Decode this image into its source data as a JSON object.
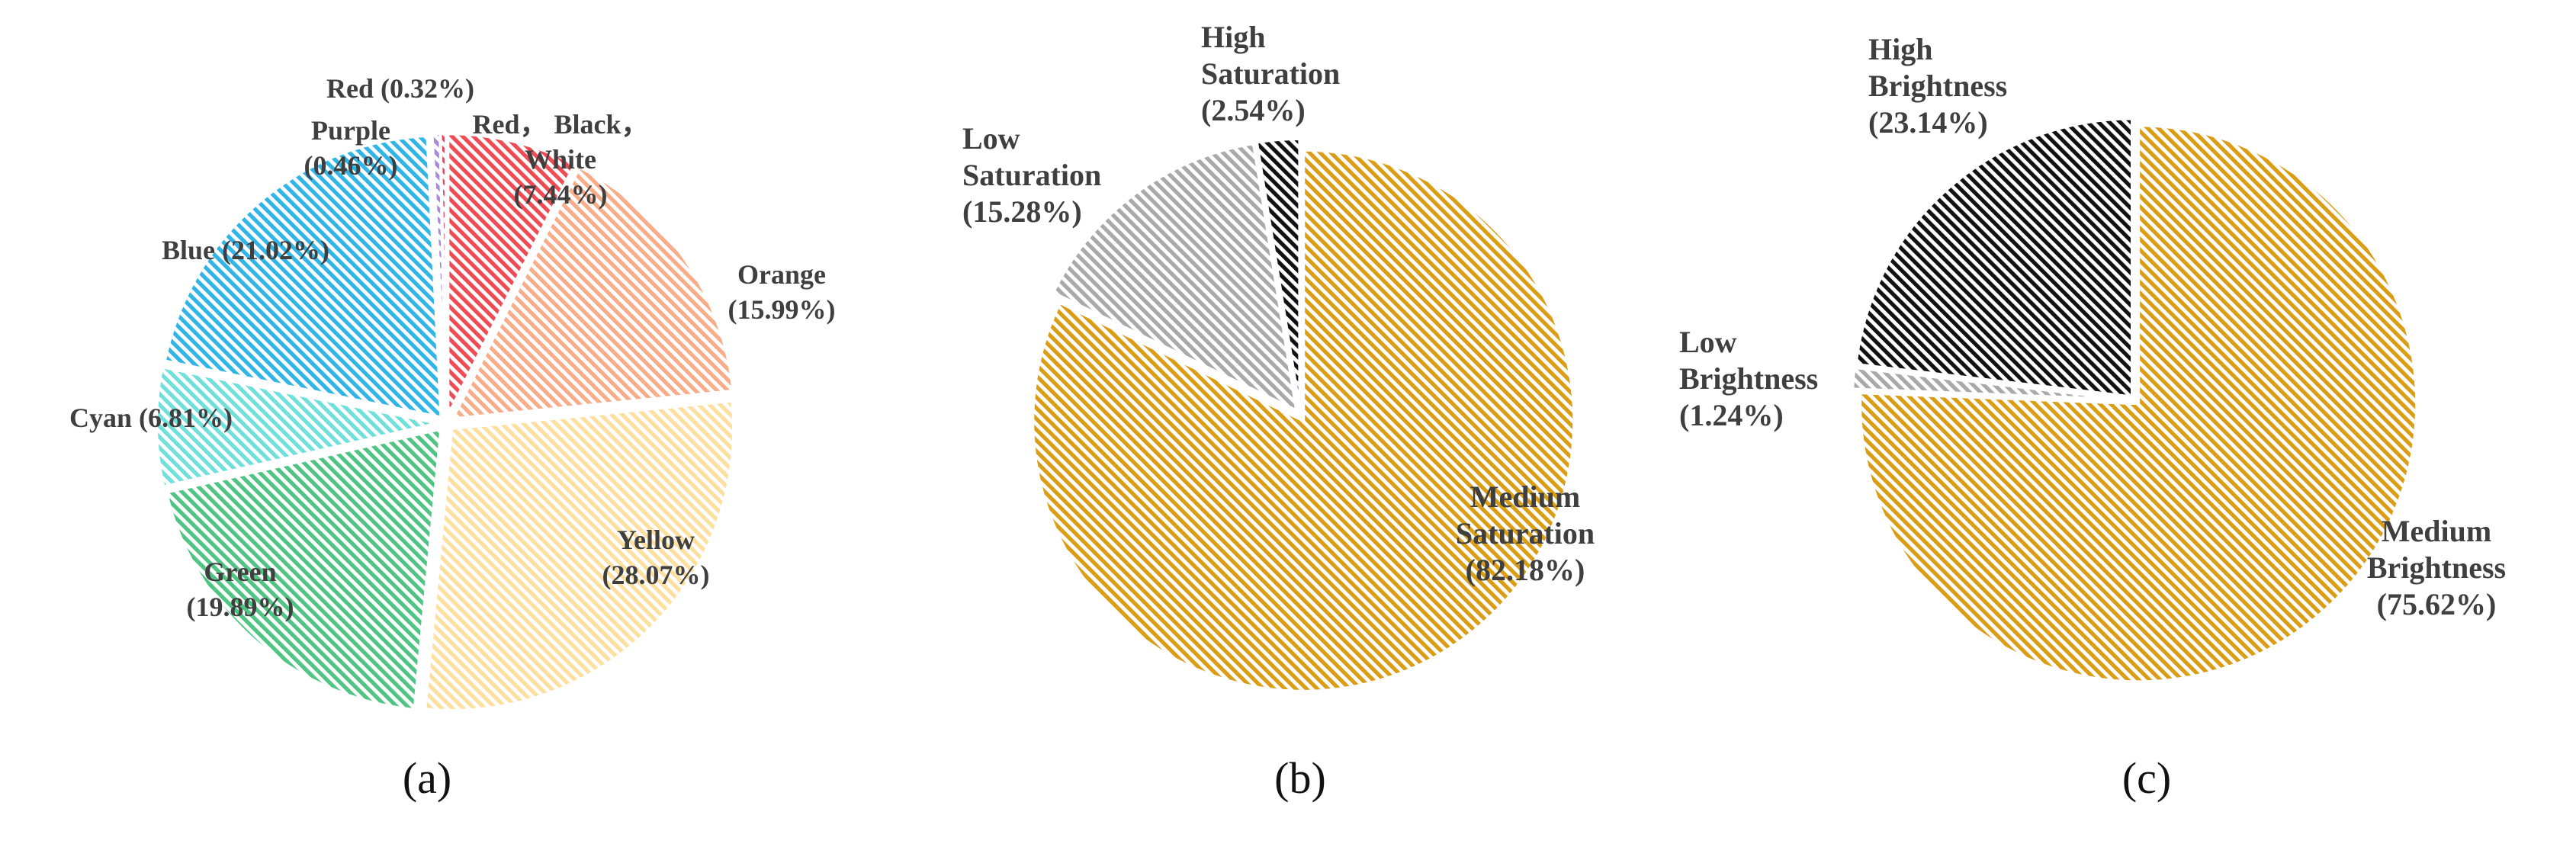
{
  "chart_data": [
    {
      "type": "pie",
      "caption": "(a)",
      "slices": [
        {
          "label": "Red，Black，White",
          "lines": [
            "Red， Black，",
            "White",
            "(7.44%)"
          ],
          "value": 7.44,
          "color": "#ef4b55"
        },
        {
          "label": "Orange",
          "lines": [
            "Orange",
            "(15.99%)"
          ],
          "value": 15.99,
          "color": "#f7ad8a"
        },
        {
          "label": "Yellow",
          "lines": [
            "Yellow",
            "(28.07%)"
          ],
          "value": 28.07,
          "color": "#fde0a0"
        },
        {
          "label": "Green",
          "lines": [
            "Green",
            "(19.89%)"
          ],
          "value": 19.89,
          "color": "#50c482"
        },
        {
          "label": "Cyan",
          "lines": [
            "Cyan (6.81%)"
          ],
          "value": 6.81,
          "color": "#6fe0dc"
        },
        {
          "label": "Blue",
          "lines": [
            "Blue (21.02%)"
          ],
          "value": 21.02,
          "color": "#31b4e6"
        },
        {
          "label": "Purple",
          "lines": [
            "Purple",
            "(0.46%)"
          ],
          "value": 0.46,
          "color": "#a98ad8"
        },
        {
          "label": "Red",
          "lines": [
            "Red (0.32%)"
          ],
          "value": 0.32,
          "color": "#e0455a"
        }
      ]
    },
    {
      "type": "pie",
      "caption": "(b)",
      "slices": [
        {
          "label": "Medium Saturation",
          "lines": [
            "Medium",
            "Saturation",
            "(82.18%)"
          ],
          "value": 82.18,
          "color": "#d99d16"
        },
        {
          "label": "Low Saturation",
          "lines": [
            "Low",
            "Saturation",
            "(15.28%)"
          ],
          "value": 15.28,
          "color": "#a9a9a9"
        },
        {
          "label": "High Saturation",
          "lines": [
            "High",
            "Saturation",
            "(2.54%)"
          ],
          "value": 2.54,
          "color": "#111111"
        }
      ]
    },
    {
      "type": "pie",
      "caption": "(c)",
      "slices": [
        {
          "label": "Medium Brightness",
          "lines": [
            "Medium",
            "Brightness",
            "(75.62%)"
          ],
          "value": 75.62,
          "color": "#d99d16"
        },
        {
          "label": "Low Brightness",
          "lines": [
            "Low",
            "Brightness",
            "(1.24%)"
          ],
          "value": 1.24,
          "color": "#a9a9a9"
        },
        {
          "label": "High Brightness",
          "lines": [
            "High",
            "Brightness",
            "(23.14%)"
          ],
          "value": 23.14,
          "color": "#111111"
        }
      ]
    }
  ]
}
